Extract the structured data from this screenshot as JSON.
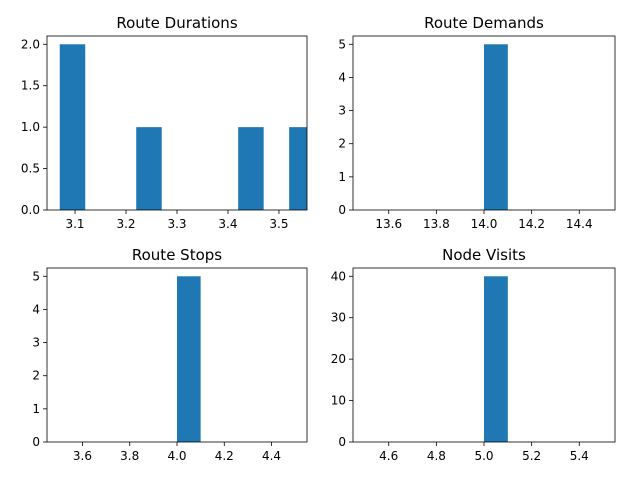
{
  "figure": {
    "bar_color": "#1f77b4",
    "axis_color": "#000000"
  },
  "chart_data": [
    {
      "type": "bar",
      "title": "Route Durations",
      "xlim": [
        3.045,
        3.555
      ],
      "ylim": [
        0,
        2.1
      ],
      "xticks": [
        3.1,
        3.2,
        3.3,
        3.4,
        3.5
      ],
      "xtick_labels": [
        "3.1",
        "3.2",
        "3.3",
        "3.4",
        "3.5"
      ],
      "yticks": [
        0,
        0.5,
        1,
        1.5,
        2
      ],
      "ytick_labels": [
        "0.0",
        "0.5",
        "1.0",
        "1.5",
        "2.0"
      ],
      "bars": [
        {
          "x0": 3.07,
          "x1": 3.12,
          "value": 2
        },
        {
          "x0": 3.22,
          "x1": 3.27,
          "value": 1
        },
        {
          "x0": 3.42,
          "x1": 3.47,
          "value": 1
        },
        {
          "x0": 3.52,
          "x1": 3.57,
          "value": 1
        }
      ]
    },
    {
      "type": "bar",
      "title": "Route Demands",
      "xlim": [
        13.45,
        14.55
      ],
      "ylim": [
        0,
        5.25
      ],
      "xticks": [
        13.6,
        13.8,
        14.0,
        14.2,
        14.4
      ],
      "xtick_labels": [
        "13.6",
        "13.8",
        "14.0",
        "14.2",
        "14.4"
      ],
      "yticks": [
        0,
        1,
        2,
        3,
        4,
        5
      ],
      "ytick_labels": [
        "0",
        "1",
        "2",
        "3",
        "4",
        "5"
      ],
      "bars": [
        {
          "x0": 14.0,
          "x1": 14.1,
          "value": 5
        }
      ]
    },
    {
      "type": "bar",
      "title": "Route Stops",
      "xlim": [
        3.45,
        4.55
      ],
      "ylim": [
        0,
        5.25
      ],
      "xticks": [
        3.6,
        3.8,
        4.0,
        4.2,
        4.4
      ],
      "xtick_labels": [
        "3.6",
        "3.8",
        "4.0",
        "4.2",
        "4.4"
      ],
      "yticks": [
        0,
        1,
        2,
        3,
        4,
        5
      ],
      "ytick_labels": [
        "0",
        "1",
        "2",
        "3",
        "4",
        "5"
      ],
      "bars": [
        {
          "x0": 4.0,
          "x1": 4.1,
          "value": 5
        }
      ]
    },
    {
      "type": "bar",
      "title": "Node Visits",
      "xlim": [
        4.45,
        5.55
      ],
      "ylim": [
        0,
        42
      ],
      "xticks": [
        4.6,
        4.8,
        5.0,
        5.2,
        5.4
      ],
      "xtick_labels": [
        "4.6",
        "4.8",
        "5.0",
        "5.2",
        "5.4"
      ],
      "yticks": [
        0,
        10,
        20,
        30,
        40
      ],
      "ytick_labels": [
        "0",
        "10",
        "20",
        "30",
        "40"
      ],
      "bars": [
        {
          "x0": 5.0,
          "x1": 5.1,
          "value": 40
        }
      ]
    }
  ]
}
